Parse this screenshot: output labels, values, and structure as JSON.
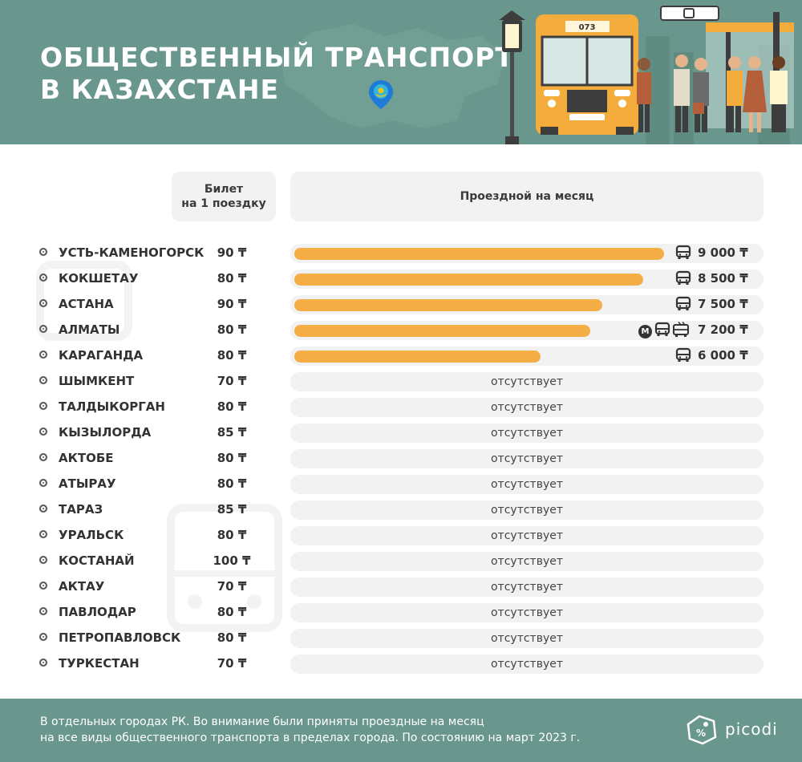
{
  "header": {
    "title_line1": "ОБЩЕСТВЕННЫЙ ТРАНСПОРТ",
    "title_line2": "В КАЗАХСТАНЕ",
    "bus_number": "073"
  },
  "columns": {
    "ticket_line1": "Билет",
    "ticket_line2": "на 1 поездку",
    "pass": "Проездной на месяц"
  },
  "absent_label": "отсутствует",
  "colors": {
    "header_bg": "#69978d",
    "bar": "#f5ad45",
    "track": "#f2f2f2"
  },
  "chart_data": {
    "type": "bar",
    "orientation": "horizontal",
    "title": "ОБЩЕСТВЕННЫЙ ТРАНСПОРТ В КАЗАХСТАНЕ",
    "xlim": [
      0,
      9000
    ],
    "rows": [
      {
        "city": "УСТЬ-КАМЕНОГОРСК",
        "ticket": "90 ₸",
        "pass": 9000,
        "pass_label": "9 000 ₸",
        "icons": [
          "bus-icon"
        ]
      },
      {
        "city": "КОКШЕТАУ",
        "ticket": "80 ₸",
        "pass": 8500,
        "pass_label": "8 500 ₸",
        "icons": [
          "bus-icon"
        ]
      },
      {
        "city": "АСТАНА",
        "ticket": "90 ₸",
        "pass": 7500,
        "pass_label": "7 500 ₸",
        "icons": [
          "bus-icon"
        ]
      },
      {
        "city": "АЛМАТЫ",
        "ticket": "80 ₸",
        "pass": 7200,
        "pass_label": "7 200 ₸",
        "icons": [
          "metro-icon",
          "bus-icon",
          "trolleybus-icon"
        ]
      },
      {
        "city": "КАРАГАНДА",
        "ticket": "80 ₸",
        "pass": 6000,
        "pass_label": "6 000 ₸",
        "icons": [
          "bus-icon"
        ]
      },
      {
        "city": "ШЫМКЕНТ",
        "ticket": "70 ₸",
        "pass": null
      },
      {
        "city": "ТАЛДЫКОРГАН",
        "ticket": "80 ₸",
        "pass": null
      },
      {
        "city": "КЫЗЫЛОРДА",
        "ticket": "85 ₸",
        "pass": null
      },
      {
        "city": "АКТОБЕ",
        "ticket": "80 ₸",
        "pass": null
      },
      {
        "city": "АТЫРАУ",
        "ticket": "80 ₸",
        "pass": null
      },
      {
        "city": "ТАРАЗ",
        "ticket": "85 ₸",
        "pass": null
      },
      {
        "city": "УРАЛЬСК",
        "ticket": "80 ₸",
        "pass": null
      },
      {
        "city": "КОСТАНАЙ",
        "ticket": "100 ₸",
        "pass": null
      },
      {
        "city": "АКТАУ",
        "ticket": "70 ₸",
        "pass": null
      },
      {
        "city": "ПАВЛОДАР",
        "ticket": "80 ₸",
        "pass": null
      },
      {
        "city": "ПЕТРОПАВЛОВСК",
        "ticket": "80 ₸",
        "pass": null
      },
      {
        "city": "ТУРКЕСТАН",
        "ticket": "70 ₸",
        "pass": null
      }
    ]
  },
  "footer": {
    "note_line1": "В отдельных городах РК. Во внимание были приняты проездные на месяц",
    "note_line2": "на все виды общественного транспорта в пределах города. По состоянию на март 2023 г.",
    "brand": "picodi"
  }
}
